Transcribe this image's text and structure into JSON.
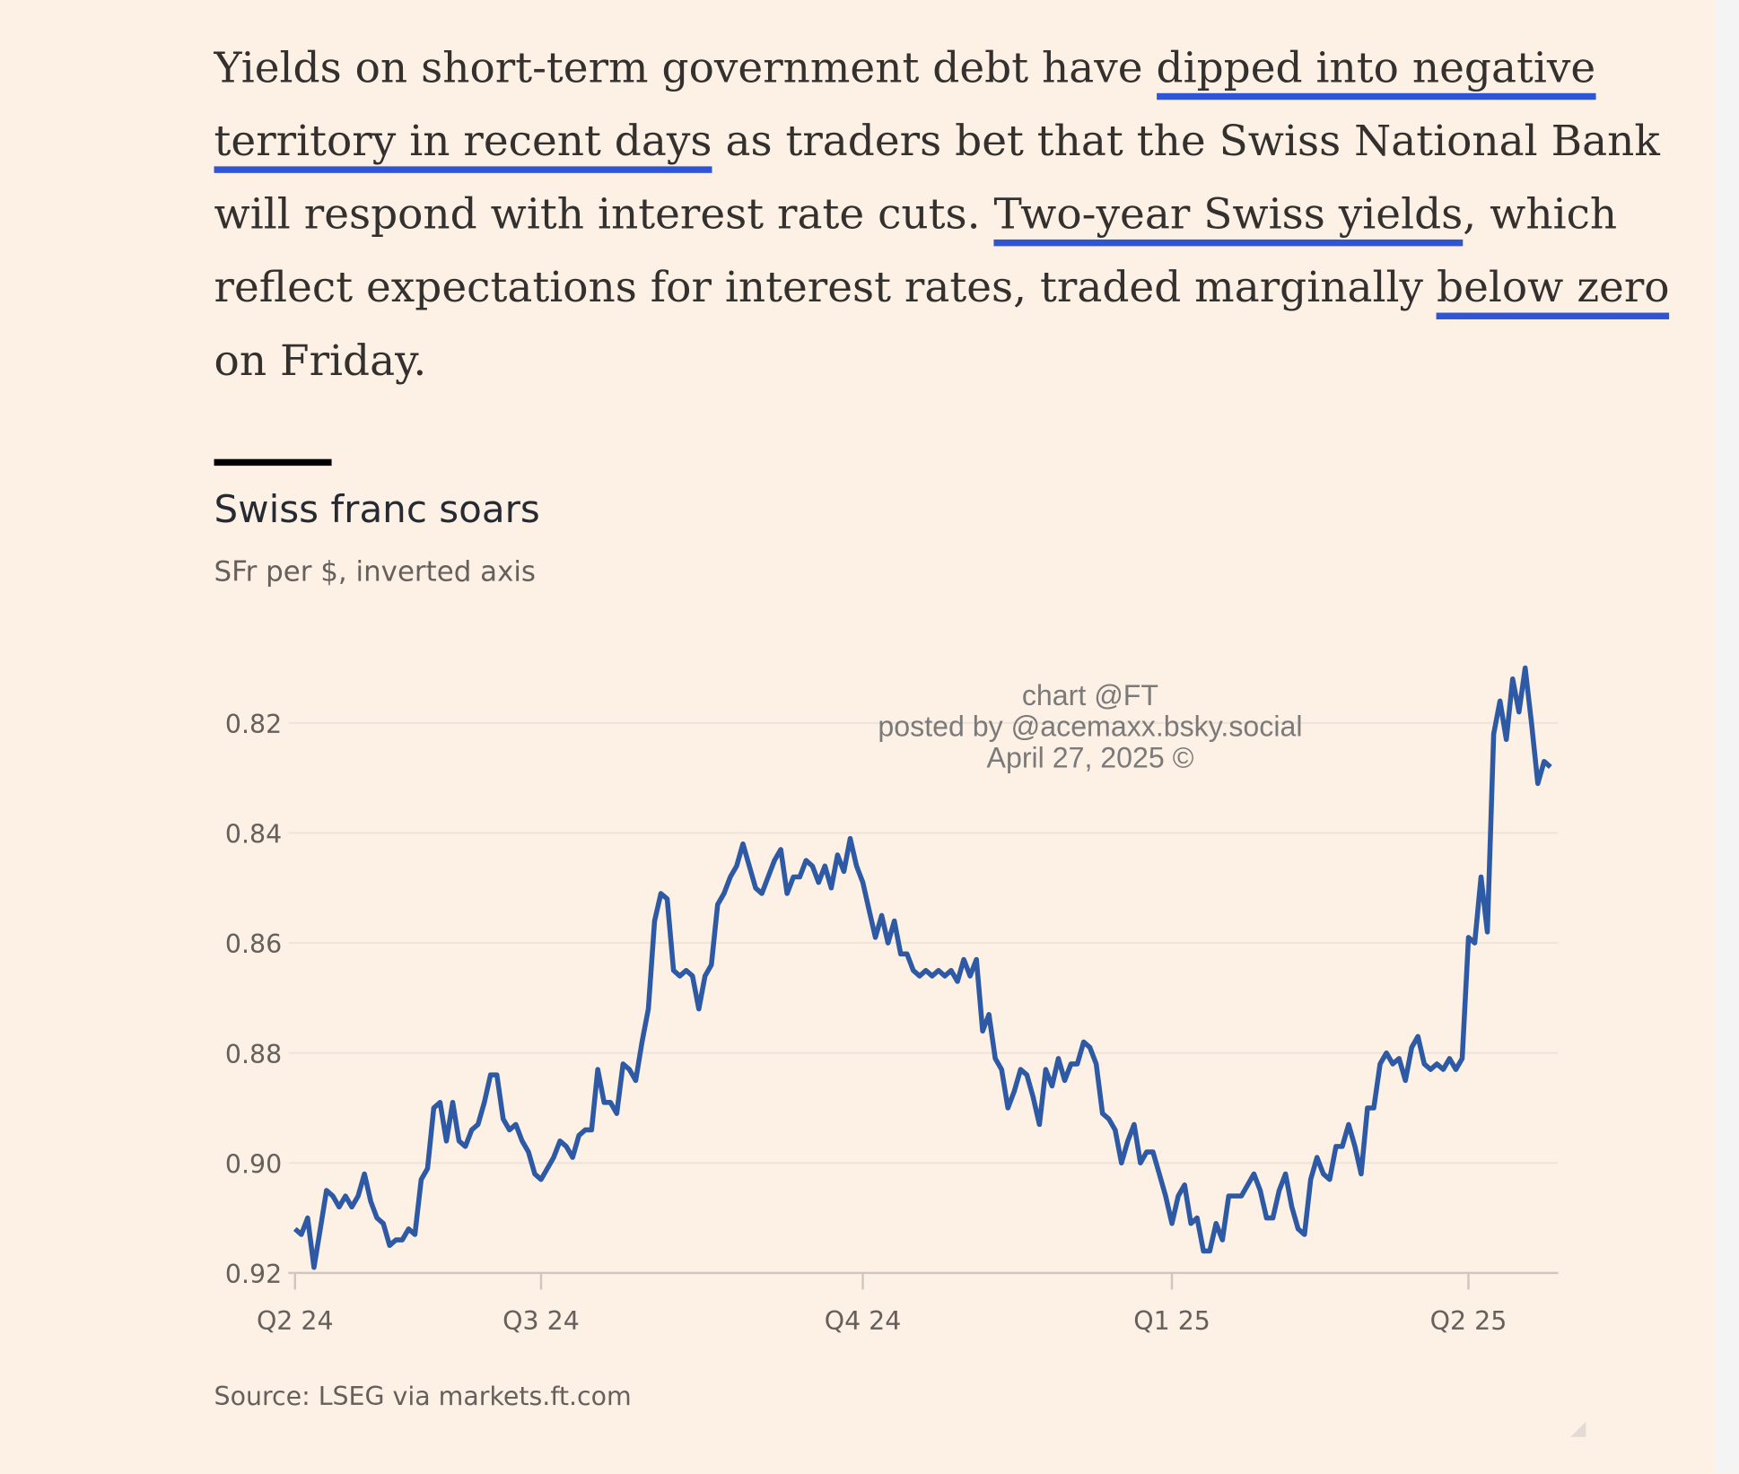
{
  "article": {
    "lines": [
      [
        {
          "text": "Yields on short-term government debt have ",
          "highlight": false
        },
        {
          "text": "dipped into negative",
          "highlight": true
        }
      ],
      [
        {
          "text": "territory in recent days",
          "highlight": true
        },
        {
          "text": " as traders bet that the Swiss National Bank",
          "highlight": false
        }
      ],
      [
        {
          "text": "will respond with interest rate cuts. ",
          "highlight": false
        },
        {
          "text": "Two-year Swiss yields",
          "highlight": true
        },
        {
          "text": ", which",
          "highlight": false
        }
      ],
      [
        {
          "text": "reflect expectations for interest rates, traded marginally ",
          "highlight": false
        },
        {
          "text": "below zero",
          "highlight": true
        }
      ],
      [
        {
          "text": "on Friday.",
          "highlight": false
        }
      ]
    ]
  },
  "chart_data": {
    "type": "line",
    "title": "Swiss franc soars",
    "subtitle": "SFr per $, inverted axis",
    "source": "Source: LSEG via markets.ft.com",
    "watermark": [
      "chart @FT",
      "posted by @acemaxx.bsky.social",
      "April 27, 2025 ©"
    ],
    "categories": [
      "Q2 24",
      null,
      null,
      null,
      null,
      null,
      null,
      null,
      null,
      null,
      null,
      null,
      null,
      null,
      null,
      null,
      null,
      null,
      null,
      null,
      null,
      null,
      null,
      null,
      null,
      null,
      null,
      null,
      null,
      null,
      null,
      null,
      null,
      null,
      null,
      null,
      null,
      null,
      null,
      "Q3 24",
      null,
      null,
      null,
      null,
      null,
      null,
      null,
      null,
      null,
      null,
      null,
      null,
      null,
      null,
      null,
      null,
      null,
      null,
      null,
      null,
      null,
      null,
      null,
      null,
      null,
      null,
      null,
      null,
      null,
      null,
      null,
      null,
      null,
      null,
      null,
      null,
      null,
      null,
      null,
      null,
      null,
      null,
      null,
      null,
      null,
      null,
      null,
      null,
      null,
      null,
      "Q4 24",
      null,
      null,
      null,
      null,
      null,
      null,
      null,
      null,
      null,
      null,
      null,
      null,
      null,
      null,
      null,
      null,
      null,
      null,
      null,
      null,
      null,
      null,
      null,
      null,
      null,
      null,
      null,
      null,
      null,
      null,
      null,
      null,
      null,
      null,
      null,
      null,
      null,
      null,
      null,
      null,
      null,
      null,
      null,
      null,
      null,
      null,
      null,
      null,
      "Q1 25",
      null,
      null,
      null,
      null,
      null,
      null,
      null,
      null,
      null,
      null,
      null,
      null,
      null,
      null,
      null,
      null,
      null,
      null,
      null,
      null,
      null,
      null,
      null,
      null,
      null,
      null,
      null,
      null,
      null,
      null,
      null,
      null,
      null,
      null,
      null,
      null,
      null,
      null,
      null,
      null,
      null,
      null,
      null,
      null,
      null,
      null,
      "Q2 25",
      null,
      null,
      null,
      null,
      null,
      null,
      null,
      null,
      null,
      null,
      null,
      null,
      null
    ],
    "series": [
      {
        "name": "SFr per $",
        "color": "#2e5aa5",
        "values": [
          0.912,
          0.913,
          0.91,
          0.919,
          0.912,
          0.905,
          0.906,
          0.908,
          0.906,
          0.908,
          0.906,
          0.902,
          0.907,
          0.91,
          0.911,
          0.915,
          0.914,
          0.914,
          0.912,
          0.913,
          0.903,
          0.901,
          0.89,
          0.889,
          0.896,
          0.889,
          0.896,
          0.897,
          0.894,
          0.893,
          0.889,
          0.884,
          0.884,
          0.892,
          0.894,
          0.893,
          0.896,
          0.898,
          0.902,
          0.903,
          0.901,
          0.899,
          0.896,
          0.897,
          0.899,
          0.895,
          0.894,
          0.894,
          0.883,
          0.889,
          0.889,
          0.891,
          0.882,
          0.883,
          0.885,
          0.878,
          0.872,
          0.856,
          0.851,
          0.852,
          0.865,
          0.866,
          0.865,
          0.866,
          0.872,
          0.866,
          0.864,
          0.853,
          0.851,
          0.848,
          0.846,
          0.842,
          0.846,
          0.85,
          0.851,
          0.848,
          0.845,
          0.843,
          0.851,
          0.848,
          0.848,
          0.845,
          0.846,
          0.849,
          0.846,
          0.85,
          0.844,
          0.847,
          0.841,
          0.846,
          0.849,
          0.854,
          0.859,
          0.855,
          0.86,
          0.856,
          0.862,
          0.862,
          0.865,
          0.866,
          0.865,
          0.866,
          0.865,
          0.866,
          0.865,
          0.867,
          0.863,
          0.866,
          0.863,
          0.876,
          0.873,
          0.881,
          0.883,
          0.89,
          0.887,
          0.883,
          0.884,
          0.888,
          0.893,
          0.883,
          0.886,
          0.881,
          0.885,
          0.882,
          0.882,
          0.878,
          0.879,
          0.882,
          0.891,
          0.892,
          0.894,
          0.9,
          0.896,
          0.893,
          0.9,
          0.898,
          0.898,
          0.902,
          0.906,
          0.911,
          0.906,
          0.904,
          0.911,
          0.91,
          0.916,
          0.916,
          0.911,
          0.914,
          0.906,
          0.906,
          0.906,
          0.904,
          0.902,
          0.905,
          0.91,
          0.91,
          0.905,
          0.902,
          0.908,
          0.912,
          0.913,
          0.903,
          0.899,
          0.902,
          0.903,
          0.897,
          0.897,
          0.893,
          0.897,
          0.902,
          0.89,
          0.89,
          0.882,
          0.88,
          0.882,
          0.881,
          0.885,
          0.879,
          0.877,
          0.882,
          0.883,
          0.882,
          0.883,
          0.881,
          0.883,
          0.881,
          0.859,
          0.86,
          0.848,
          0.858,
          0.822,
          0.816,
          0.823,
          0.812,
          0.818,
          0.81,
          0.82,
          0.831,
          0.827,
          0.828
        ]
      }
    ],
    "ylim": [
      0.81,
      0.92
    ],
    "inverted": true,
    "yticks": [
      0.82,
      0.84,
      0.86,
      0.88,
      {
        "value": 0.9,
        "label": "0.90"
      },
      0.92
    ],
    "grid": true
  }
}
